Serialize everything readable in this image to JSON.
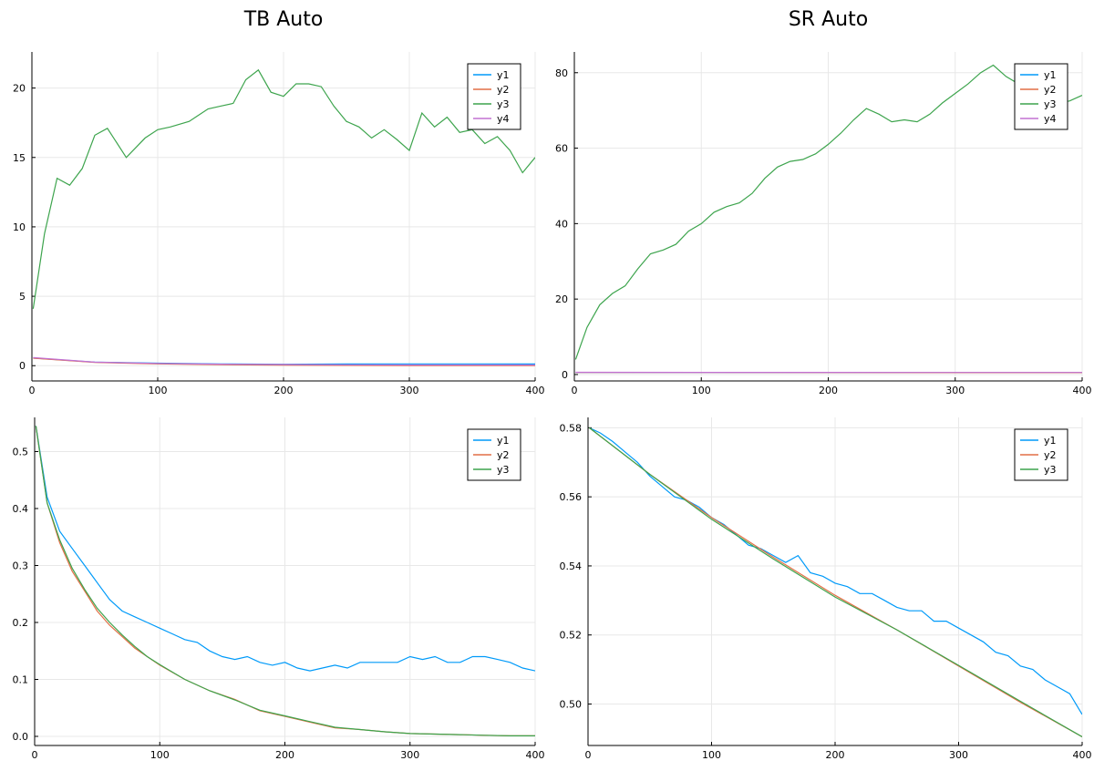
{
  "colors": {
    "y1": "#009af9",
    "y2": "#e26f46",
    "y3": "#3da44d",
    "y4": "#c271d2",
    "grid": "#e8e8e8",
    "axis": "#000000"
  },
  "chart_data": [
    {
      "type": "line",
      "title": "TB Auto",
      "xlim": [
        0,
        400
      ],
      "ylim": [
        -1.1,
        22.6
      ],
      "xticks": [
        0,
        100,
        200,
        300,
        400
      ],
      "yticks": [
        0,
        5,
        10,
        15,
        20
      ],
      "grid": true,
      "legend_position": "top-right",
      "series": [
        {
          "name": "y1",
          "color": "#009af9",
          "x": [
            1,
            50,
            100,
            150,
            200,
            250,
            300,
            350,
            400
          ],
          "y": [
            0.55,
            0.25,
            0.18,
            0.13,
            0.1,
            0.12,
            0.13,
            0.13,
            0.12
          ]
        },
        {
          "name": "y2",
          "color": "#e26f46",
          "x": [
            1,
            50,
            100,
            150,
            200,
            250,
            300,
            350,
            400
          ],
          "y": [
            0.54,
            0.23,
            0.13,
            0.07,
            0.04,
            0.02,
            0.01,
            0.0,
            0.0
          ]
        },
        {
          "name": "y3",
          "color": "#3da44d",
          "x": [
            1,
            10,
            20,
            30,
            40,
            50,
            60,
            75,
            90,
            100,
            110,
            125,
            140,
            150,
            160,
            170,
            180,
            190,
            200,
            210,
            220,
            230,
            240,
            250,
            260,
            270,
            280,
            290,
            300,
            310,
            320,
            330,
            340,
            350,
            360,
            370,
            380,
            390,
            400
          ],
          "y": [
            4.1,
            9.5,
            13.5,
            13.0,
            14.2,
            16.6,
            17.1,
            15.0,
            16.4,
            17.0,
            17.2,
            17.6,
            18.5,
            18.7,
            18.9,
            20.6,
            21.3,
            19.7,
            19.4,
            20.3,
            20.3,
            20.1,
            18.7,
            17.6,
            17.2,
            16.4,
            17.0,
            16.3,
            15.5,
            18.2,
            17.2,
            17.9,
            16.8,
            17.0,
            16.0,
            16.5,
            15.5,
            13.9,
            15.0
          ]
        },
        {
          "name": "y4",
          "color": "#c271d2",
          "x": [
            1,
            50,
            100,
            150,
            200,
            250,
            300,
            350,
            400
          ],
          "y": [
            0.58,
            0.25,
            0.16,
            0.11,
            0.08,
            0.06,
            0.05,
            0.05,
            0.05
          ]
        }
      ]
    },
    {
      "type": "line",
      "title": "SR Auto",
      "xlim": [
        0,
        400
      ],
      "ylim": [
        -1.7,
        85.5
      ],
      "xticks": [
        0,
        100,
        200,
        300,
        400
      ],
      "yticks": [
        0,
        20,
        40,
        60,
        80
      ],
      "grid": true,
      "legend_position": "top-right",
      "series": [
        {
          "name": "y1",
          "color": "#009af9",
          "x": [
            1,
            100,
            200,
            300,
            400
          ],
          "y": [
            0.58,
            0.55,
            0.53,
            0.51,
            0.5
          ]
        },
        {
          "name": "y2",
          "color": "#e26f46",
          "x": [
            1,
            100,
            200,
            300,
            400
          ],
          "y": [
            0.58,
            0.55,
            0.53,
            0.51,
            0.49
          ]
        },
        {
          "name": "y3",
          "color": "#3da44d",
          "x": [
            1,
            10,
            20,
            30,
            40,
            50,
            60,
            70,
            80,
            90,
            100,
            110,
            120,
            130,
            140,
            150,
            160,
            170,
            180,
            190,
            200,
            210,
            220,
            230,
            240,
            250,
            260,
            270,
            280,
            290,
            300,
            310,
            320,
            330,
            340,
            350,
            360,
            370,
            380,
            390,
            400
          ],
          "y": [
            4.0,
            12.5,
            18.5,
            21.5,
            23.5,
            28.0,
            32.0,
            33.0,
            34.5,
            38.0,
            40.0,
            43.0,
            44.5,
            45.5,
            48.0,
            52.0,
            55.0,
            56.5,
            57.0,
            58.5,
            61.0,
            64.0,
            67.5,
            70.5,
            69.0,
            67.0,
            67.5,
            67.0,
            69.0,
            72.0,
            74.5,
            77.0,
            80.0,
            82.0,
            79.0,
            77.0,
            76.0,
            74.0,
            72.0,
            72.5,
            74.0
          ]
        },
        {
          "name": "y4",
          "color": "#c271d2",
          "x": [
            1,
            100,
            200,
            300,
            400
          ],
          "y": [
            0.6,
            0.58,
            0.56,
            0.55,
            0.54
          ]
        }
      ]
    },
    {
      "type": "line",
      "title": "",
      "xlim": [
        0,
        400
      ],
      "ylim": [
        -0.016,
        0.56
      ],
      "xticks": [
        0,
        100,
        200,
        300,
        400
      ],
      "yticks": [
        0.0,
        0.1,
        0.2,
        0.3,
        0.4,
        0.5
      ],
      "grid": true,
      "legend_position": "top-right",
      "series": [
        {
          "name": "y1",
          "color": "#009af9",
          "x": [
            1,
            10,
            20,
            30,
            40,
            50,
            60,
            70,
            80,
            90,
            100,
            110,
            120,
            130,
            140,
            150,
            160,
            170,
            180,
            190,
            200,
            210,
            220,
            230,
            240,
            250,
            260,
            270,
            280,
            290,
            300,
            310,
            320,
            330,
            340,
            350,
            360,
            370,
            380,
            390,
            400
          ],
          "y": [
            0.545,
            0.42,
            0.36,
            0.33,
            0.3,
            0.27,
            0.24,
            0.22,
            0.21,
            0.2,
            0.19,
            0.18,
            0.17,
            0.165,
            0.15,
            0.14,
            0.135,
            0.14,
            0.13,
            0.125,
            0.13,
            0.12,
            0.115,
            0.12,
            0.125,
            0.12,
            0.13,
            0.13,
            0.13,
            0.13,
            0.14,
            0.135,
            0.14,
            0.13,
            0.13,
            0.14,
            0.14,
            0.135,
            0.13,
            0.12,
            0.115
          ]
        },
        {
          "name": "y2",
          "color": "#e26f46",
          "x": [
            1,
            10,
            20,
            30,
            40,
            50,
            60,
            70,
            80,
            90,
            100,
            120,
            140,
            160,
            180,
            200,
            220,
            240,
            260,
            280,
            300,
            320,
            340,
            360,
            380,
            400
          ],
          "y": [
            0.545,
            0.41,
            0.34,
            0.29,
            0.255,
            0.22,
            0.195,
            0.175,
            0.155,
            0.14,
            0.125,
            0.1,
            0.08,
            0.065,
            0.045,
            0.035,
            0.025,
            0.015,
            0.012,
            0.008,
            0.005,
            0.004,
            0.003,
            0.002,
            0.001,
            0.001
          ]
        },
        {
          "name": "y3",
          "color": "#3da44d",
          "x": [
            1,
            10,
            20,
            30,
            40,
            50,
            60,
            70,
            80,
            90,
            100,
            120,
            140,
            160,
            180,
            200,
            220,
            240,
            260,
            280,
            300,
            320,
            340,
            360,
            380,
            400
          ],
          "y": [
            0.545,
            0.41,
            0.345,
            0.295,
            0.258,
            0.225,
            0.2,
            0.178,
            0.158,
            0.14,
            0.126,
            0.1,
            0.08,
            0.064,
            0.046,
            0.036,
            0.026,
            0.016,
            0.012,
            0.008,
            0.005,
            0.004,
            0.003,
            0.002,
            0.001,
            0.001
          ]
        }
      ]
    },
    {
      "type": "line",
      "title": "",
      "xlim": [
        0,
        400
      ],
      "ylim": [
        0.488,
        0.583
      ],
      "xticks": [
        0,
        100,
        200,
        300,
        400
      ],
      "yticks": [
        0.5,
        0.52,
        0.54,
        0.56,
        0.58
      ],
      "grid": true,
      "legend_position": "top-right",
      "series": [
        {
          "name": "y1",
          "color": "#009af9",
          "x": [
            1,
            10,
            20,
            30,
            40,
            50,
            60,
            70,
            80,
            90,
            100,
            110,
            120,
            130,
            140,
            150,
            160,
            170,
            180,
            190,
            200,
            210,
            220,
            230,
            240,
            250,
            260,
            270,
            280,
            290,
            300,
            310,
            320,
            330,
            340,
            350,
            360,
            370,
            380,
            390,
            400
          ],
          "y": [
            0.58,
            0.5785,
            0.576,
            0.573,
            0.57,
            0.566,
            0.563,
            0.56,
            0.559,
            0.557,
            0.554,
            0.552,
            0.549,
            0.546,
            0.545,
            0.543,
            0.541,
            0.543,
            0.538,
            0.537,
            0.535,
            0.534,
            0.532,
            0.532,
            0.53,
            0.528,
            0.527,
            0.527,
            0.524,
            0.524,
            0.522,
            0.52,
            0.518,
            0.515,
            0.514,
            0.511,
            0.51,
            0.507,
            0.505,
            0.503,
            0.497
          ]
        },
        {
          "name": "y2",
          "color": "#e26f46",
          "x": [
            1,
            50,
            100,
            150,
            200,
            250,
            300,
            350,
            400
          ],
          "y": [
            0.58,
            0.5665,
            0.554,
            0.5425,
            0.5315,
            0.5215,
            0.511,
            0.5005,
            0.4905
          ]
        },
        {
          "name": "y3",
          "color": "#3da44d",
          "x": [
            1,
            50,
            100,
            150,
            200,
            250,
            300,
            350,
            400
          ],
          "y": [
            0.58,
            0.5665,
            0.5535,
            0.542,
            0.531,
            0.5215,
            0.5112,
            0.5008,
            0.4905
          ]
        }
      ]
    }
  ]
}
